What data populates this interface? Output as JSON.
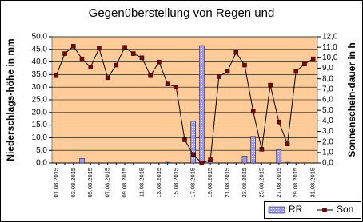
{
  "chart_data": {
    "type": "bar-line",
    "title": "Gegenüberstellung von Regen und",
    "y_label": "Niederschlags-höhe in mm",
    "y2_label": "Sonnenschein-dauer in h",
    "categories": [
      "01.08.2015",
      null,
      "03.08.2015",
      null,
      "05.08.2015",
      null,
      "07.08.2015",
      null,
      "09.08.2015",
      null,
      "11.08.2015",
      null,
      "13.08.2015",
      null,
      "15.08.2015",
      null,
      "17.08.2015",
      null,
      "19.08.2015",
      null,
      "21.08.2015",
      null,
      "23.08.2015",
      null,
      "25.08.2015",
      null,
      "27.08.2015",
      null,
      "29.08.2015",
      null,
      "31.08.2015"
    ],
    "series": [
      {
        "name": "RR",
        "type": "bar",
        "color": "#9999ff",
        "axis": "y",
        "values": [
          0,
          0,
          0,
          1.8,
          0,
          0,
          0,
          0,
          0,
          0,
          0,
          0,
          0,
          0.3,
          0,
          0,
          16.5,
          46.5,
          0.5,
          0,
          0,
          0,
          2.7,
          10.5,
          0,
          0,
          5.3,
          0.3,
          0,
          0,
          0
        ]
      },
      {
        "name": "Son",
        "type": "line",
        "color": "#000000",
        "marker_color": "#800000",
        "axis": "y2",
        "values": [
          8.3,
          10.4,
          11.1,
          9.9,
          9.1,
          10.9,
          8.1,
          9.3,
          11.0,
          10.4,
          10.0,
          8.3,
          9.6,
          7.5,
          7.2,
          2.2,
          0.8,
          0.0,
          0.3,
          8.2,
          8.7,
          10.5,
          9.3,
          4.9,
          1.3,
          7.4,
          3.9,
          1.8,
          8.7,
          9.4,
          9.9
        ]
      }
    ],
    "ylim": [
      0,
      50
    ],
    "yticks": [
      {
        "value": 0,
        "label": "0,0"
      },
      {
        "value": 5,
        "label": "5,0"
      },
      {
        "value": 10,
        "label": "10,0"
      },
      {
        "value": 15,
        "label": "15,0"
      },
      {
        "value": 20,
        "label": "20,0"
      },
      {
        "value": 25,
        "label": "25,0"
      },
      {
        "value": 30,
        "label": "30,0"
      },
      {
        "value": 35,
        "label": "35,0"
      },
      {
        "value": 40,
        "label": "40,0"
      },
      {
        "value": 45,
        "label": "45,0"
      },
      {
        "value": 50,
        "label": "50,0"
      }
    ],
    "y2lim": [
      0,
      12
    ],
    "y2ticks": [
      {
        "value": 0,
        "label": "0,0"
      },
      {
        "value": 1,
        "label": "1,0"
      },
      {
        "value": 2,
        "label": "2,0"
      },
      {
        "value": 3,
        "label": "3,0"
      },
      {
        "value": 4,
        "label": "4,0"
      },
      {
        "value": 5,
        "label": "5,0"
      },
      {
        "value": 6,
        "label": "6,0"
      },
      {
        "value": 7,
        "label": "7,0"
      },
      {
        "value": 8,
        "label": "8,0"
      },
      {
        "value": 9,
        "label": "9,0"
      },
      {
        "value": 10,
        "label": "10,0"
      },
      {
        "value": 11,
        "label": "11,0"
      },
      {
        "value": 12,
        "label": "12,0"
      }
    ],
    "grid": true,
    "plot_background": "#ffcc99",
    "legend": "bottom-right"
  }
}
